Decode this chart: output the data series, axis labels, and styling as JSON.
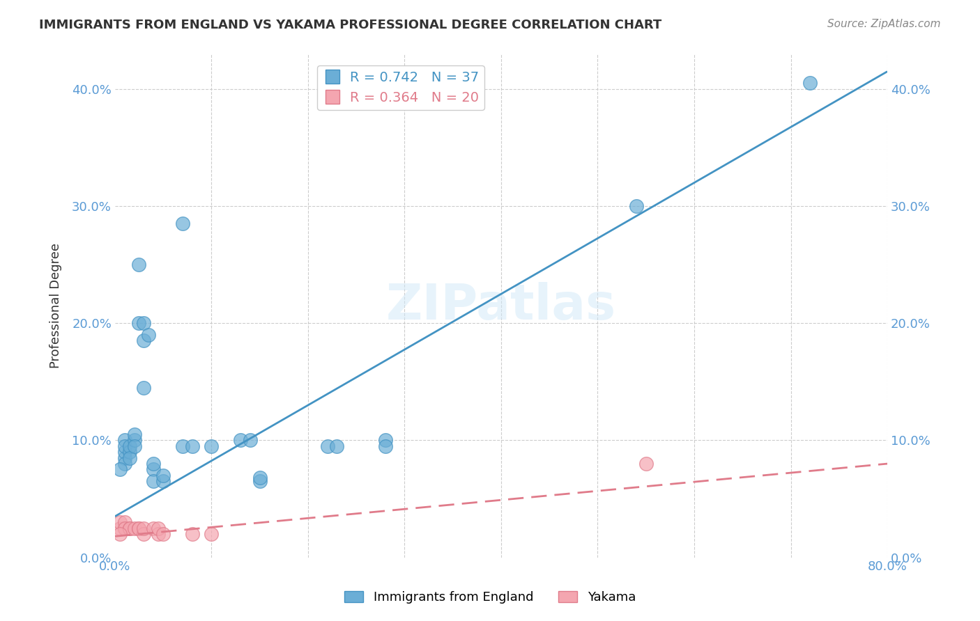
{
  "title": "IMMIGRANTS FROM ENGLAND VS YAKAMA PROFESSIONAL DEGREE CORRELATION CHART",
  "source": "Source: ZipAtlas.com",
  "ylabel": "Professional Degree",
  "ytick_values": [
    0.0,
    0.1,
    0.2,
    0.3,
    0.4
  ],
  "xlim": [
    0.0,
    0.8
  ],
  "ylim": [
    0.0,
    0.43
  ],
  "legend_label_blue": "Immigrants from England",
  "legend_label_pink": "Yakama",
  "blue_color": "#6baed6",
  "pink_color": "#f4a6b0",
  "blue_line_color": "#4393c3",
  "pink_line_color": "#e07b8a",
  "blue_scatter": [
    [
      0.01,
      0.085
    ],
    [
      0.01,
      0.09
    ],
    [
      0.01,
      0.1
    ],
    [
      0.01,
      0.095
    ],
    [
      0.01,
      0.08
    ],
    [
      0.015,
      0.09
    ],
    [
      0.015,
      0.095
    ],
    [
      0.015,
      0.085
    ],
    [
      0.02,
      0.1
    ],
    [
      0.02,
      0.105
    ],
    [
      0.02,
      0.095
    ],
    [
      0.025,
      0.25
    ],
    [
      0.025,
      0.2
    ],
    [
      0.03,
      0.2
    ],
    [
      0.03,
      0.185
    ],
    [
      0.03,
      0.145
    ],
    [
      0.035,
      0.19
    ],
    [
      0.04,
      0.075
    ],
    [
      0.04,
      0.08
    ],
    [
      0.04,
      0.065
    ],
    [
      0.05,
      0.065
    ],
    [
      0.05,
      0.07
    ],
    [
      0.07,
      0.095
    ],
    [
      0.07,
      0.285
    ],
    [
      0.08,
      0.095
    ],
    [
      0.1,
      0.095
    ],
    [
      0.13,
      0.1
    ],
    [
      0.14,
      0.1
    ],
    [
      0.15,
      0.065
    ],
    [
      0.15,
      0.068
    ],
    [
      0.22,
      0.095
    ],
    [
      0.23,
      0.095
    ],
    [
      0.28,
      0.1
    ],
    [
      0.28,
      0.095
    ],
    [
      0.54,
      0.3
    ],
    [
      0.72,
      0.405
    ],
    [
      0.005,
      0.075
    ]
  ],
  "pink_scatter": [
    [
      0.005,
      0.025
    ],
    [
      0.005,
      0.03
    ],
    [
      0.01,
      0.025
    ],
    [
      0.01,
      0.03
    ],
    [
      0.01,
      0.025
    ],
    [
      0.015,
      0.025
    ],
    [
      0.015,
      0.025
    ],
    [
      0.02,
      0.025
    ],
    [
      0.025,
      0.025
    ],
    [
      0.025,
      0.025
    ],
    [
      0.03,
      0.02
    ],
    [
      0.03,
      0.025
    ],
    [
      0.04,
      0.025
    ],
    [
      0.045,
      0.02
    ],
    [
      0.045,
      0.025
    ],
    [
      0.05,
      0.02
    ],
    [
      0.08,
      0.02
    ],
    [
      0.1,
      0.02
    ],
    [
      0.55,
      0.08
    ],
    [
      0.005,
      0.02
    ]
  ],
  "blue_line_x": [
    0.0,
    0.8
  ],
  "blue_line_y": [
    0.035,
    0.415
  ],
  "pink_line_x": [
    0.0,
    0.8
  ],
  "pink_line_y_start": 0.018,
  "pink_line_y_end": 0.08,
  "watermark": "ZIPatlas",
  "background_color": "#ffffff",
  "grid_color": "#cccccc",
  "title_color": "#333333",
  "tick_label_color": "#5b9bd5"
}
